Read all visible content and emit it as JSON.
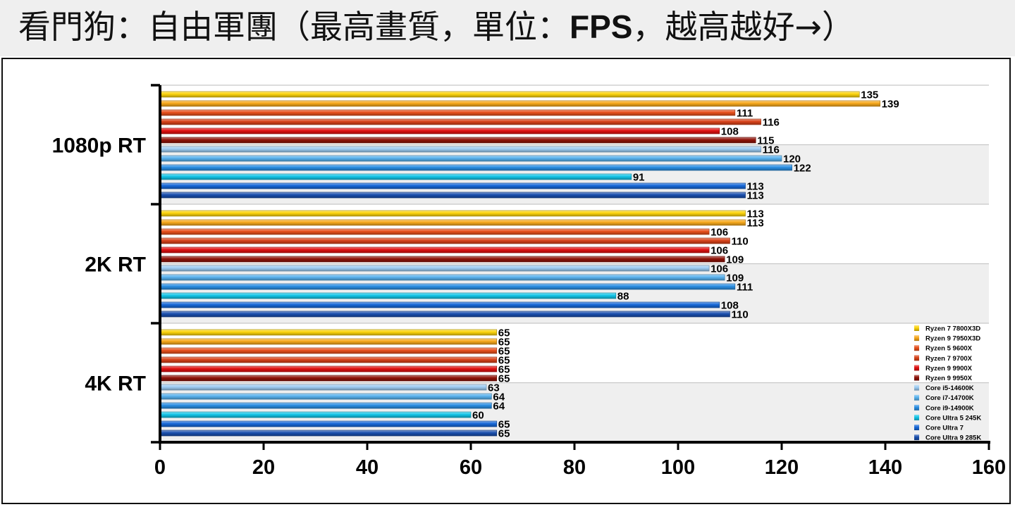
{
  "header": {
    "title_prefix": "看門狗：自由軍團（最高畫質，單位：",
    "title_unit": "FPS",
    "title_suffix": "，越高越好→）"
  },
  "chart_data": {
    "type": "bar",
    "orientation": "horizontal",
    "categories": [
      "1080p RT",
      "2K RT",
      "4K RT"
    ],
    "xlim": [
      0,
      160
    ],
    "xticks": [
      0,
      20,
      40,
      60,
      80,
      100,
      120,
      140,
      160
    ],
    "grid": false,
    "legend_position": "bottom-right",
    "series": [
      {
        "name": "Ryzen 7 7800X3D",
        "color": "#fbd30b",
        "values": [
          135,
          113,
          65
        ]
      },
      {
        "name": "Ryzen 9 7950X3D",
        "color": "#f7a81b",
        "values": [
          139,
          113,
          65
        ]
      },
      {
        "name": "Ryzen 5 9600X",
        "color": "#e8501c",
        "values": [
          111,
          106,
          65
        ]
      },
      {
        "name": "Ryzen 7 9700X",
        "color": "#d84219",
        "values": [
          116,
          110,
          65
        ]
      },
      {
        "name": "Ryzen 9 9900X",
        "color": "#e01010",
        "values": [
          108,
          106,
          65
        ]
      },
      {
        "name": "Ryzen 9 9950X",
        "color": "#8e1208",
        "values": [
          115,
          109,
          65
        ]
      },
      {
        "name": "Core i5-14600K",
        "color": "#9ccbf2",
        "values": [
          116,
          106,
          63
        ]
      },
      {
        "name": "Core i7-14700K",
        "color": "#59b2ee",
        "values": [
          120,
          109,
          64
        ]
      },
      {
        "name": "Core i9-14900K",
        "color": "#2a8fe3",
        "values": [
          122,
          111,
          64
        ]
      },
      {
        "name": "Core Ultra 5 245K",
        "color": "#14c5e8",
        "values": [
          91,
          88,
          60
        ]
      },
      {
        "name": "Core Ultra 7",
        "color": "#1768d8",
        "values": [
          113,
          108,
          65
        ]
      },
      {
        "name": "Core Ultra 9 285K",
        "color": "#1a4fae",
        "values": [
          113,
          110,
          65
        ]
      }
    ]
  }
}
